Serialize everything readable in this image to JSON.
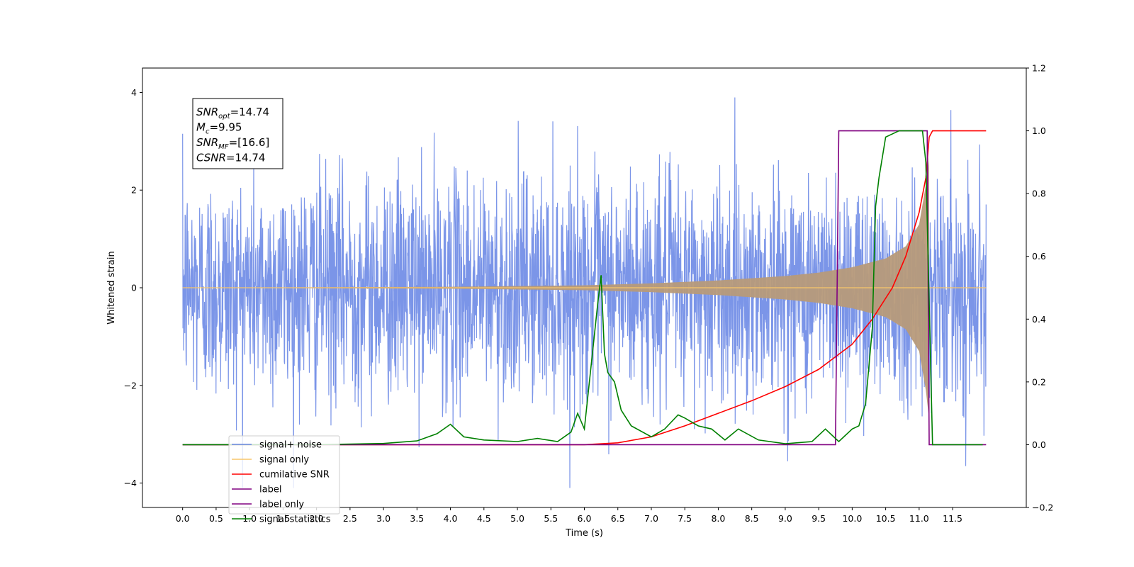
{
  "chart_data": {
    "type": "line",
    "title": "",
    "xlabel": "Time (s)",
    "ylabel": "Whitened strain",
    "xlim": [
      -0.6,
      12.6
    ],
    "ylim": [
      -4.5,
      4.5
    ],
    "y2lim": [
      -0.2,
      1.2
    ],
    "x_ticks": [
      0.0,
      0.5,
      1.0,
      1.5,
      2.0,
      2.5,
      3.0,
      3.5,
      4.0,
      4.5,
      5.0,
      5.5,
      6.0,
      6.5,
      7.0,
      7.5,
      8.0,
      8.5,
      9.0,
      9.5,
      10.0,
      10.5,
      11.0,
      11.5
    ],
    "x_tick_labels": [
      "0.0",
      "0.5",
      "1.0",
      "1.5",
      "2.0",
      "2.5",
      "3.0",
      "3.5",
      "4.0",
      "4.5",
      "5.0",
      "5.5",
      "6.0",
      "6.5",
      "7.0",
      "7.5",
      "8.0",
      "8.5",
      "9.0",
      "9.5",
      "10.0",
      "10.5",
      "11.0",
      "11.5"
    ],
    "y_ticks": [
      -4,
      -2,
      0,
      2,
      4
    ],
    "y_tick_labels": [
      "−4",
      "−2",
      "0",
      "2",
      "4"
    ],
    "y2_ticks": [
      -0.2,
      0.0,
      0.2,
      0.4,
      0.6,
      0.8,
      1.0,
      1.2
    ],
    "y2_tick_labels": [
      "−0.2",
      "0.0",
      "0.2",
      "0.4",
      "0.6",
      "0.8",
      "1.0",
      "1.2"
    ],
    "grid": false,
    "legend_position": "bottom-left",
    "annotation": {
      "lines": [
        {
          "main": "SNR",
          "sub": "opt",
          "value": "=14.74"
        },
        {
          "main": "M",
          "sub": "c",
          "value": "=9.95"
        },
        {
          "main": "SNR",
          "sub": "MF",
          "value": "=[16.6]"
        },
        {
          "main": "CSNR",
          "sub": "",
          "value": "=14.74"
        }
      ]
    },
    "series": [
      {
        "name": "signal+ noise",
        "axis": "left",
        "color": "#7b95e8",
        "kind": "noise",
        "x_range": [
          0.0,
          12.0
        ],
        "envelope_typical": 2.5,
        "min": -4.1,
        "max": 4.1
      },
      {
        "name": "signal only",
        "axis": "left",
        "color": "#f7c56a",
        "kind": "chirp",
        "x_range": [
          0.0,
          11.15
        ],
        "amplitude_envelope": {
          "x": [
            0.0,
            4.0,
            6.0,
            7.0,
            8.0,
            9.0,
            9.5,
            10.0,
            10.5,
            10.8,
            11.0,
            11.1,
            11.15
          ],
          "y": [
            0.0,
            0.02,
            0.05,
            0.09,
            0.15,
            0.24,
            0.31,
            0.42,
            0.6,
            0.85,
            1.3,
            2.1,
            2.7
          ]
        }
      },
      {
        "name": "cumilative SNR",
        "axis": "right",
        "color": "#ff0000",
        "x": [
          0.0,
          5.0,
          6.0,
          6.5,
          7.0,
          7.5,
          8.0,
          8.5,
          9.0,
          9.5,
          10.0,
          10.3,
          10.6,
          10.8,
          11.0,
          11.1,
          11.15,
          11.2,
          12.0
        ],
        "y": [
          0.0,
          0.0,
          0.0,
          0.006,
          0.025,
          0.06,
          0.1,
          0.14,
          0.185,
          0.24,
          0.32,
          0.4,
          0.5,
          0.6,
          0.74,
          0.85,
          0.98,
          1.0,
          1.0
        ]
      },
      {
        "name": "label",
        "axis": "right",
        "color": "#800080",
        "x": [
          0.0,
          9.75,
          9.8,
          11.12,
          11.15,
          12.0
        ],
        "y": [
          0.0,
          0.0,
          1.0,
          1.0,
          0.0,
          0.0
        ]
      },
      {
        "name": "label only",
        "axis": "right",
        "color": "#800080",
        "hidden": true
      },
      {
        "name": "signal statistics",
        "axis": "right",
        "color": "#008000",
        "x": [
          0.0,
          2.0,
          3.0,
          3.5,
          3.8,
          4.0,
          4.2,
          4.5,
          5.0,
          5.3,
          5.6,
          5.8,
          5.9,
          6.0,
          6.1,
          6.2,
          6.25,
          6.3,
          6.35,
          6.45,
          6.55,
          6.7,
          7.0,
          7.2,
          7.4,
          7.5,
          7.7,
          7.9,
          8.1,
          8.3,
          8.6,
          9.0,
          9.4,
          9.6,
          9.8,
          10.0,
          10.1,
          10.2,
          10.3,
          10.35,
          10.4,
          10.5,
          10.7,
          11.05,
          11.1,
          11.2,
          11.4,
          11.6,
          11.95
        ],
        "y": [
          0.0,
          0.0,
          0.004,
          0.012,
          0.035,
          0.065,
          0.025,
          0.015,
          0.01,
          0.02,
          0.01,
          0.04,
          0.1,
          0.05,
          0.25,
          0.45,
          0.54,
          0.29,
          0.23,
          0.2,
          0.11,
          0.06,
          0.025,
          0.05,
          0.095,
          0.085,
          0.06,
          0.05,
          0.015,
          0.05,
          0.015,
          0.003,
          0.01,
          0.05,
          0.01,
          0.05,
          0.06,
          0.13,
          0.37,
          0.76,
          0.85,
          0.98,
          1.0,
          1.0,
          0.9,
          0.0,
          0.0,
          0.0,
          0.0
        ]
      }
    ]
  }
}
